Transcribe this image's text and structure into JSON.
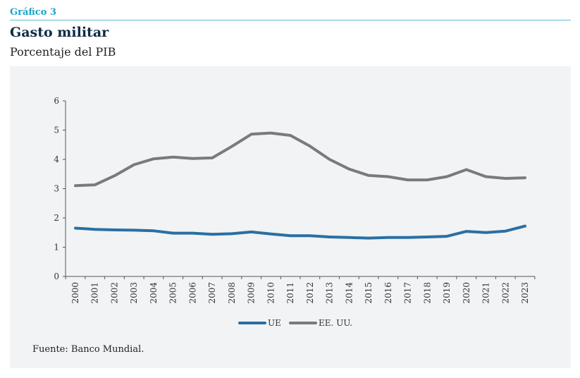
{
  "header": {
    "kicker": "Gráfico 3",
    "title": "Gasto militar",
    "subtitle": "Porcentaje del PIB"
  },
  "footer": {
    "source": "Fuente: Banco Mundial."
  },
  "chart_data": {
    "type": "line",
    "x": [
      "2000",
      "2001",
      "2002",
      "2003",
      "2004",
      "2005",
      "2006",
      "2007",
      "2008",
      "2009",
      "2010",
      "2011",
      "2012",
      "2013",
      "2014",
      "2015",
      "2016",
      "2017",
      "2018",
      "2019",
      "2020",
      "2021",
      "2022",
      "2023"
    ],
    "series": [
      {
        "name": "UE",
        "color": "#2a6fa3",
        "values": [
          1.65,
          1.61,
          1.59,
          1.58,
          1.56,
          1.48,
          1.48,
          1.44,
          1.46,
          1.52,
          1.45,
          1.39,
          1.39,
          1.35,
          1.33,
          1.31,
          1.33,
          1.33,
          1.35,
          1.37,
          1.54,
          1.5,
          1.55,
          1.72
        ]
      },
      {
        "name": "EE. UU.",
        "color": "#7a7a7a",
        "values": [
          3.1,
          3.13,
          3.44,
          3.82,
          4.02,
          4.08,
          4.03,
          4.05,
          4.44,
          4.86,
          4.9,
          4.82,
          4.45,
          4.0,
          3.67,
          3.45,
          3.41,
          3.3,
          3.3,
          3.41,
          3.65,
          3.41,
          3.35,
          3.37
        ]
      }
    ],
    "yticks": [
      "0",
      "1",
      "2",
      "3",
      "4",
      "5",
      "6"
    ],
    "ylim": [
      0,
      6
    ],
    "grid": false,
    "legend": "bottom-center"
  }
}
